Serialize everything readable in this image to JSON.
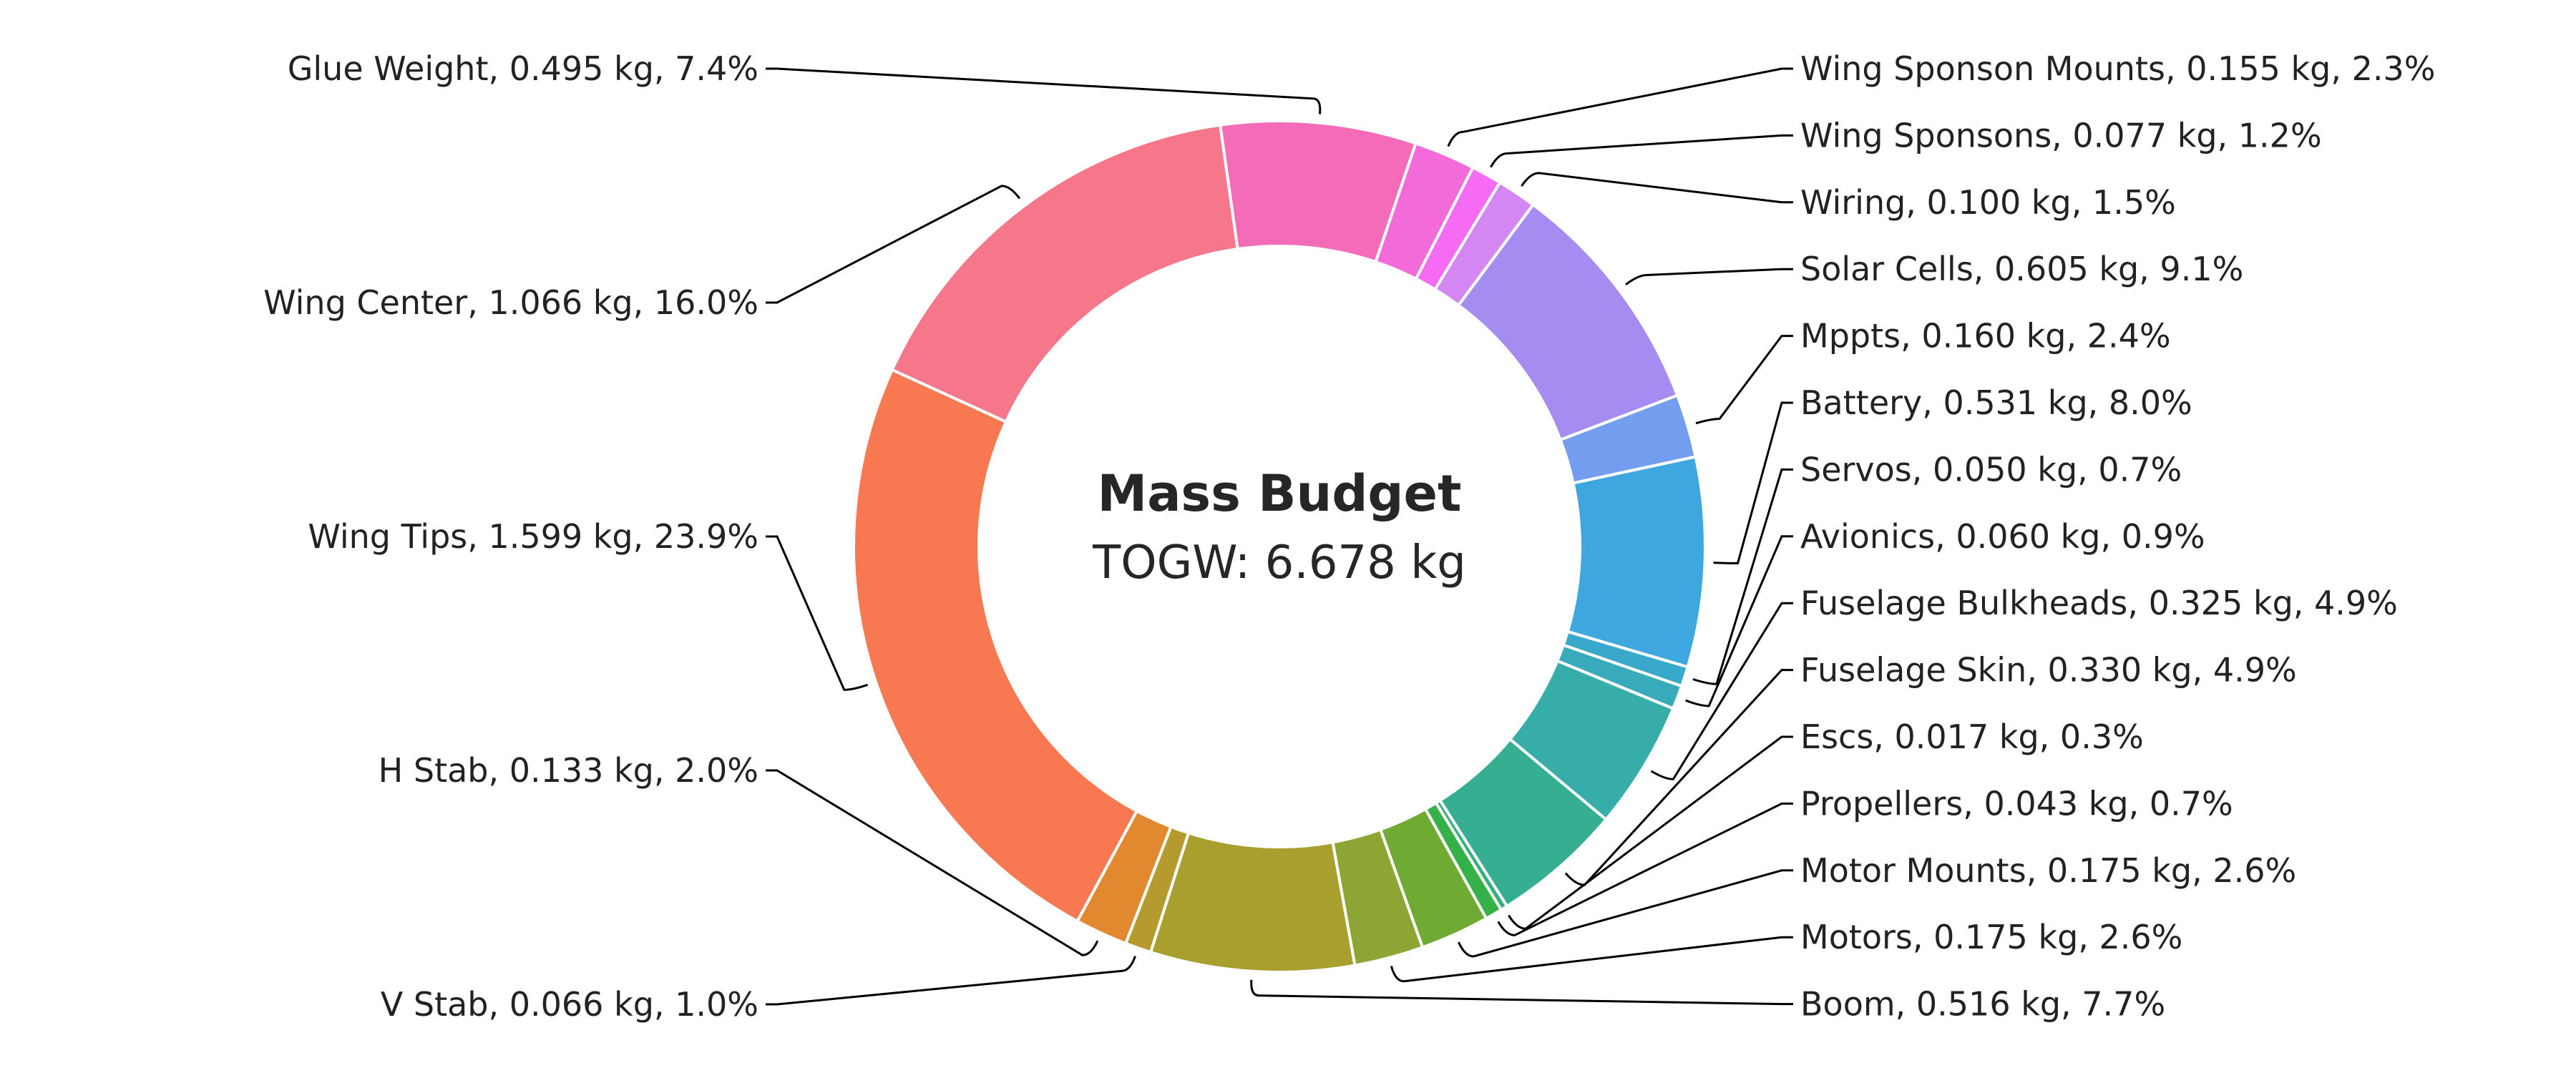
{
  "chart_data": {
    "type": "pie",
    "title": "Mass Budget",
    "subtitle": "TOGW: 6.678 kg",
    "unit": "kg",
    "series": [
      {
        "name": "Glue Weight",
        "value": 0.495,
        "percent": 7.4,
        "color": "#f46cb8",
        "label": "Glue Weight, 0.495 kg, 7.4%"
      },
      {
        "name": "Wing Sponson Mounts",
        "value": 0.155,
        "percent": 2.3,
        "color": "#f36bd8",
        "label": "Wing Sponson Mounts, 0.155 kg, 2.3%"
      },
      {
        "name": "Wing Sponsons",
        "value": 0.077,
        "percent": 1.2,
        "color": "#f66bf4",
        "label": "Wing Sponsons, 0.077 kg, 1.2%"
      },
      {
        "name": "Wiring",
        "value": 0.1,
        "percent": 1.5,
        "color": "#d486f3",
        "label": "Wiring, 0.100 kg, 1.5%"
      },
      {
        "name": "Solar Cells",
        "value": 0.605,
        "percent": 9.1,
        "color": "#a48cf0",
        "label": "Solar Cells, 0.605 kg, 9.1%"
      },
      {
        "name": "Mppts",
        "value": 0.16,
        "percent": 2.4,
        "color": "#739ef0",
        "label": "Mppts, 0.160 kg, 2.4%"
      },
      {
        "name": "Battery",
        "value": 0.531,
        "percent": 8.0,
        "color": "#3ea7e0",
        "label": "Battery, 0.531 kg, 8.0%"
      },
      {
        "name": "Servos",
        "value": 0.05,
        "percent": 0.7,
        "color": "#38a9ca",
        "label": "Servos, 0.050 kg, 0.7%"
      },
      {
        "name": "Avionics",
        "value": 0.06,
        "percent": 0.9,
        "color": "#37aabb",
        "label": "Avionics, 0.060 kg, 0.9%"
      },
      {
        "name": "Fuselage Bulkheads",
        "value": 0.325,
        "percent": 4.9,
        "color": "#36ada8",
        "label": "Fuselage Bulkheads, 0.325 kg, 4.9%"
      },
      {
        "name": "Fuselage Skin",
        "value": 0.33,
        "percent": 4.9,
        "color": "#35ae92",
        "label": "Fuselage Skin, 0.330 kg, 4.9%"
      },
      {
        "name": "Escs",
        "value": 0.017,
        "percent": 0.3,
        "color": "#32b07c",
        "label": "Escs, 0.017 kg, 0.3%"
      },
      {
        "name": "Propellers",
        "value": 0.043,
        "percent": 0.7,
        "color": "#36b14a",
        "label": "Propellers, 0.043 kg, 0.7%"
      },
      {
        "name": "Motor Mounts",
        "value": 0.175,
        "percent": 2.6,
        "color": "#6fab33",
        "label": "Motor Mounts, 0.175 kg, 2.6%"
      },
      {
        "name": "Motors",
        "value": 0.175,
        "percent": 2.6,
        "color": "#8da534",
        "label": "Motors, 0.175 kg, 2.6%"
      },
      {
        "name": "Boom",
        "value": 0.516,
        "percent": 7.7,
        "color": "#a99f2f",
        "label": "Boom, 0.516 kg, 7.7%"
      },
      {
        "name": "V Stab",
        "value": 0.066,
        "percent": 1.0,
        "color": "#b59a2e",
        "label": "V Stab, 0.066 kg, 1.0%"
      },
      {
        "name": "H Stab",
        "value": 0.133,
        "percent": 2.0,
        "color": "#e2892f",
        "label": "H Stab, 0.133 kg, 2.0%"
      },
      {
        "name": "Wing Tips",
        "value": 1.599,
        "percent": 23.9,
        "color": "#f77851",
        "label": "Wing Tips, 1.599 kg, 23.9%"
      },
      {
        "name": "Wing Center",
        "value": 1.066,
        "percent": 16.0,
        "color": "#f6768a",
        "label": "Wing Center, 1.066 kg, 16.0%"
      }
    ],
    "legend": "none",
    "donut": true
  }
}
